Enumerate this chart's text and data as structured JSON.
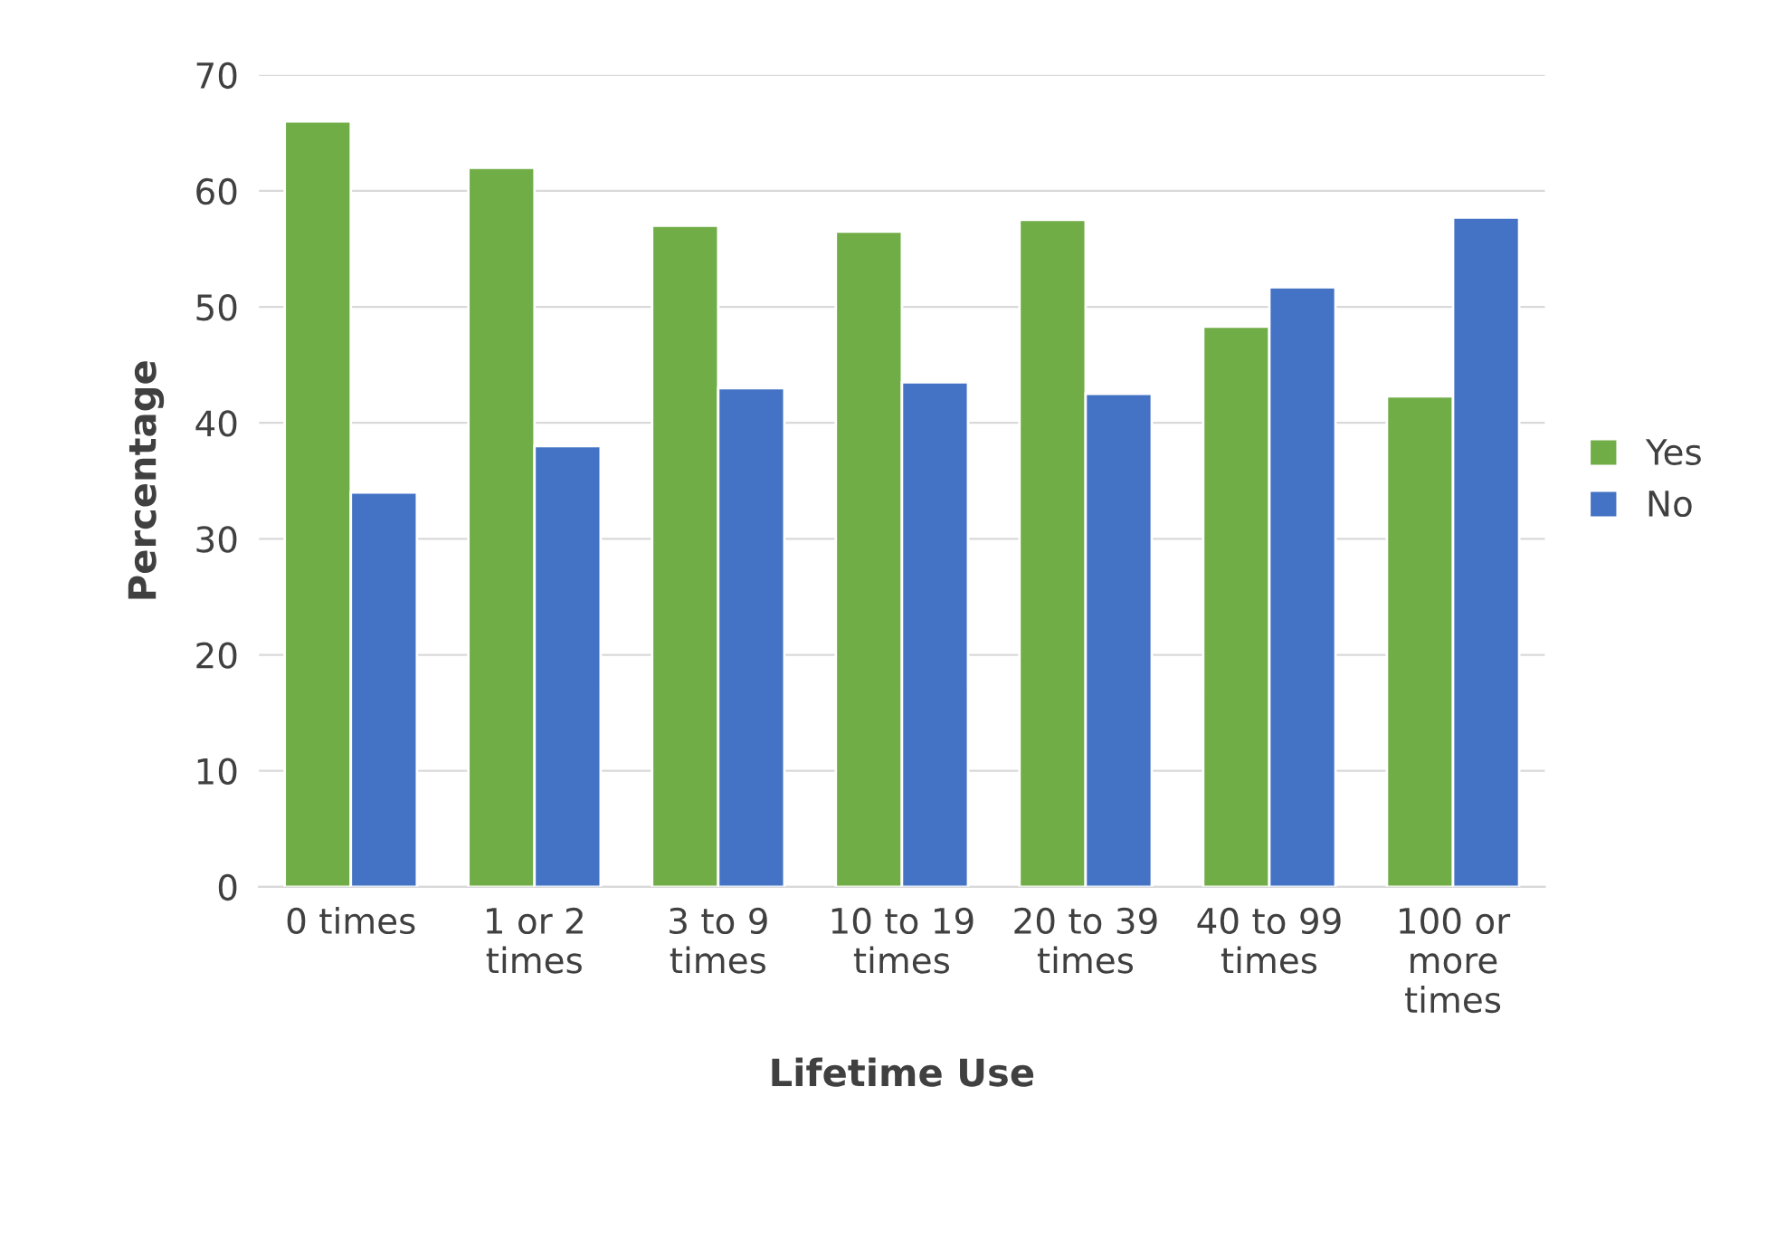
{
  "chart_data": {
    "type": "bar",
    "xlabel": "Lifetime Use",
    "ylabel": "Percentage",
    "categories": [
      "0 times",
      "1 or 2 times",
      "3 to 9 times",
      "10 to 19 times",
      "20 to 39 times",
      "40 to 99 times",
      "100 or more times"
    ],
    "series": [
      {
        "name": "Yes",
        "color": "#70ad47",
        "values": [
          66,
          62,
          57,
          56.5,
          57.5,
          48.3,
          42.3
        ]
      },
      {
        "name": "No",
        "color": "#4472c4",
        "values": [
          34,
          38,
          43,
          43.5,
          42.5,
          51.7,
          57.7
        ]
      }
    ],
    "ylim": [
      0,
      70
    ],
    "yticks": [
      0,
      10,
      20,
      30,
      40,
      50,
      60,
      70
    ],
    "grid": "y",
    "legend": "right"
  }
}
